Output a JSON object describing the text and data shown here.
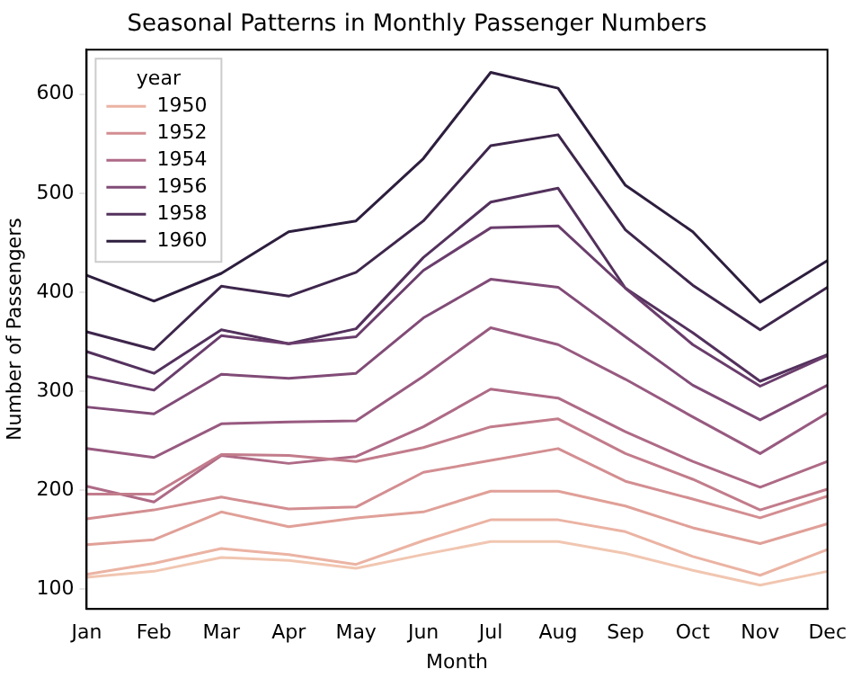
{
  "chart_data": {
    "type": "line",
    "title": "Seasonal Patterns in Monthly Passenger Numbers",
    "xlabel": "Month",
    "ylabel": "Number of Passengers",
    "legend_title": "year",
    "legend": "top left",
    "grid": false,
    "marker": "none",
    "line_style": "solid",
    "categories": [
      "Jan",
      "Feb",
      "Mar",
      "Apr",
      "May",
      "Jun",
      "Jul",
      "Aug",
      "Sep",
      "Oct",
      "Nov",
      "Dec"
    ],
    "ylim": [
      80,
      645
    ],
    "yticks": [
      100,
      200,
      300,
      400,
      500,
      600
    ],
    "series": [
      {
        "color": "#f1c6b1",
        "values": [
          112,
          118,
          132,
          129,
          121,
          135,
          148,
          148,
          136,
          119,
          104,
          118
        ]
      },
      {
        "name": "1950",
        "color": "#ebb3a3",
        "values": [
          115,
          126,
          141,
          135,
          125,
          149,
          170,
          170,
          158,
          133,
          114,
          140
        ]
      },
      {
        "color": "#e0a098",
        "values": [
          145,
          150,
          178,
          163,
          172,
          178,
          199,
          199,
          184,
          162,
          146,
          166
        ]
      },
      {
        "name": "1952",
        "color": "#d38e91",
        "values": [
          171,
          180,
          193,
          181,
          183,
          218,
          230,
          242,
          209,
          191,
          172,
          194
        ]
      },
      {
        "color": "#c27c8b",
        "values": [
          196,
          196,
          236,
          235,
          229,
          243,
          264,
          272,
          237,
          211,
          180,
          201
        ]
      },
      {
        "name": "1954",
        "color": "#ae6a86",
        "values": [
          204,
          188,
          235,
          227,
          234,
          264,
          302,
          293,
          259,
          229,
          203,
          229
        ]
      },
      {
        "color": "#985a80",
        "values": [
          242,
          233,
          267,
          269,
          270,
          315,
          364,
          347,
          312,
          274,
          237,
          278
        ]
      },
      {
        "name": "1956",
        "color": "#814b77",
        "values": [
          284,
          277,
          317,
          313,
          318,
          374,
          413,
          405,
          355,
          306,
          271,
          306
        ]
      },
      {
        "color": "#6a3d6c",
        "values": [
          315,
          301,
          356,
          348,
          355,
          422,
          465,
          467,
          404,
          347,
          305,
          336
        ]
      },
      {
        "name": "1958",
        "color": "#53315d",
        "values": [
          340,
          318,
          362,
          348,
          363,
          435,
          491,
          505,
          404,
          359,
          310,
          337
        ]
      },
      {
        "color": "#3e264c",
        "values": [
          360,
          342,
          406,
          396,
          420,
          472,
          548,
          559,
          463,
          407,
          362,
          405
        ]
      },
      {
        "name": "1960",
        "color": "#2d1e3e",
        "values": [
          417,
          391,
          419,
          461,
          472,
          535,
          622,
          606,
          508,
          461,
          390,
          432
        ]
      }
    ]
  }
}
